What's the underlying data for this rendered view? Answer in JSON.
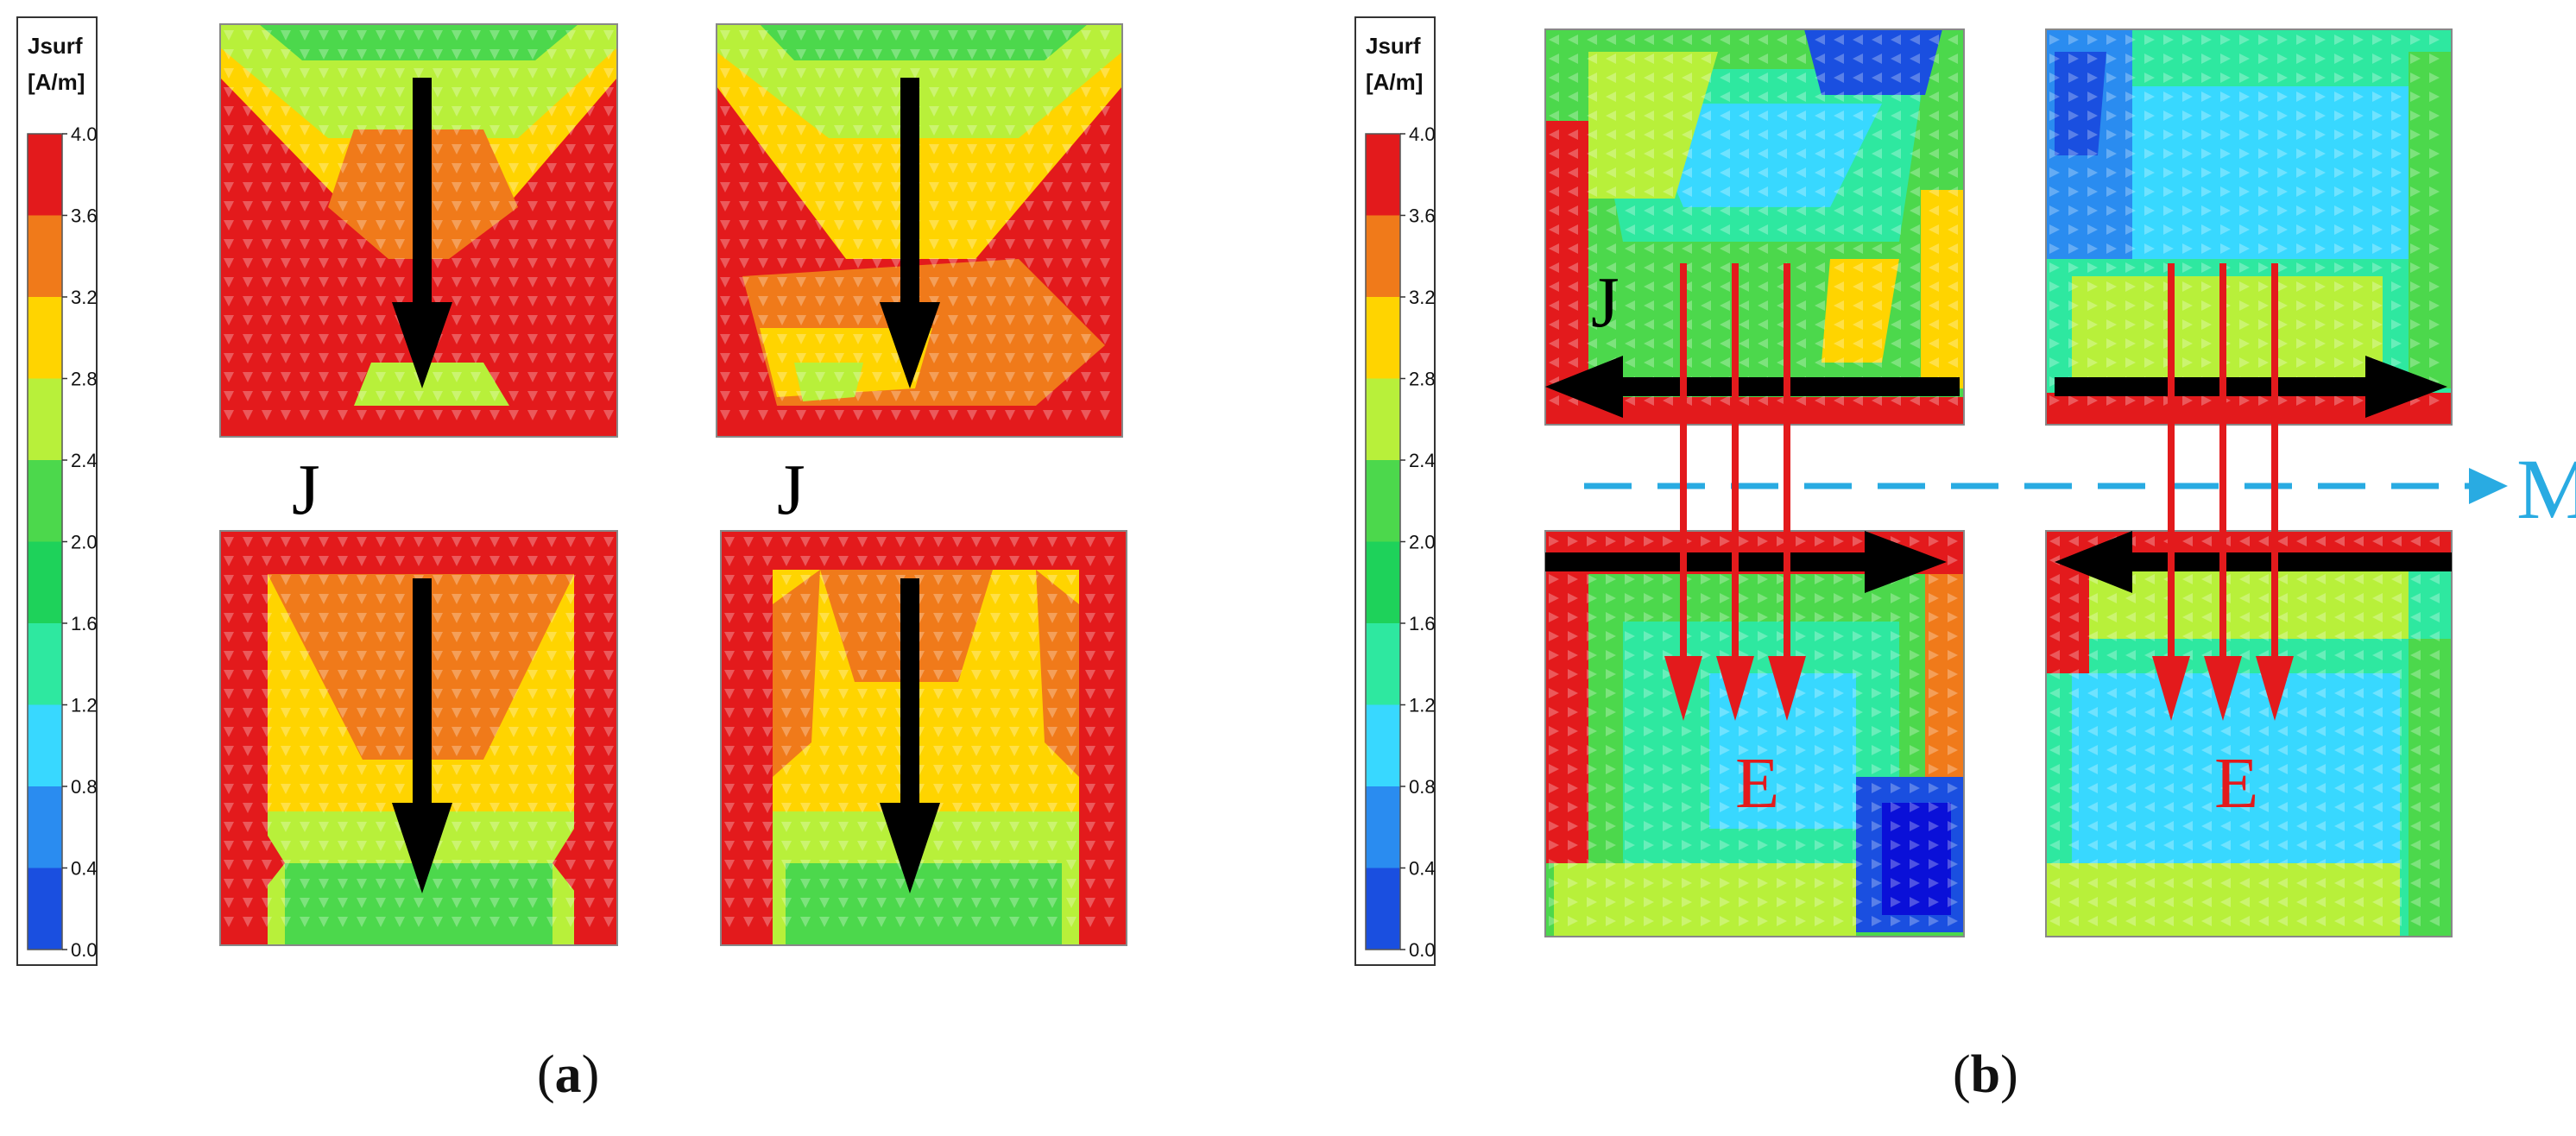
{
  "colorbar": {
    "title": "Jsurf",
    "unit": "[A/m]",
    "ticks": [
      "4.0",
      "3.6",
      "3.2",
      "2.8",
      "2.4",
      "2.0",
      "1.6",
      "1.2",
      "0.8",
      "0.4",
      "0.0"
    ],
    "colors": [
      "#e31a1c",
      "#f07a1a",
      "#ffd400",
      "#b8f03a",
      "#4cd84c",
      "#1ed25a",
      "#2ee8a0",
      "#38d8ff",
      "#2a8cf0",
      "#1a4fe0",
      "#0a10d8"
    ]
  },
  "panel_a": {
    "label_open": "(",
    "label_letter": "a",
    "label_close": ")",
    "j_labels": [
      "J",
      "J"
    ]
  },
  "panel_b": {
    "label_open": "(",
    "label_letter": "b",
    "label_close": ")",
    "j_label": "J",
    "e_labels": [
      "E",
      "E"
    ],
    "m_label": "M"
  },
  "colors": {
    "black_arrow": "#000000",
    "red_arrow": "#e31a1c",
    "m_arrow": "#29abe2",
    "frame": "#888888"
  }
}
